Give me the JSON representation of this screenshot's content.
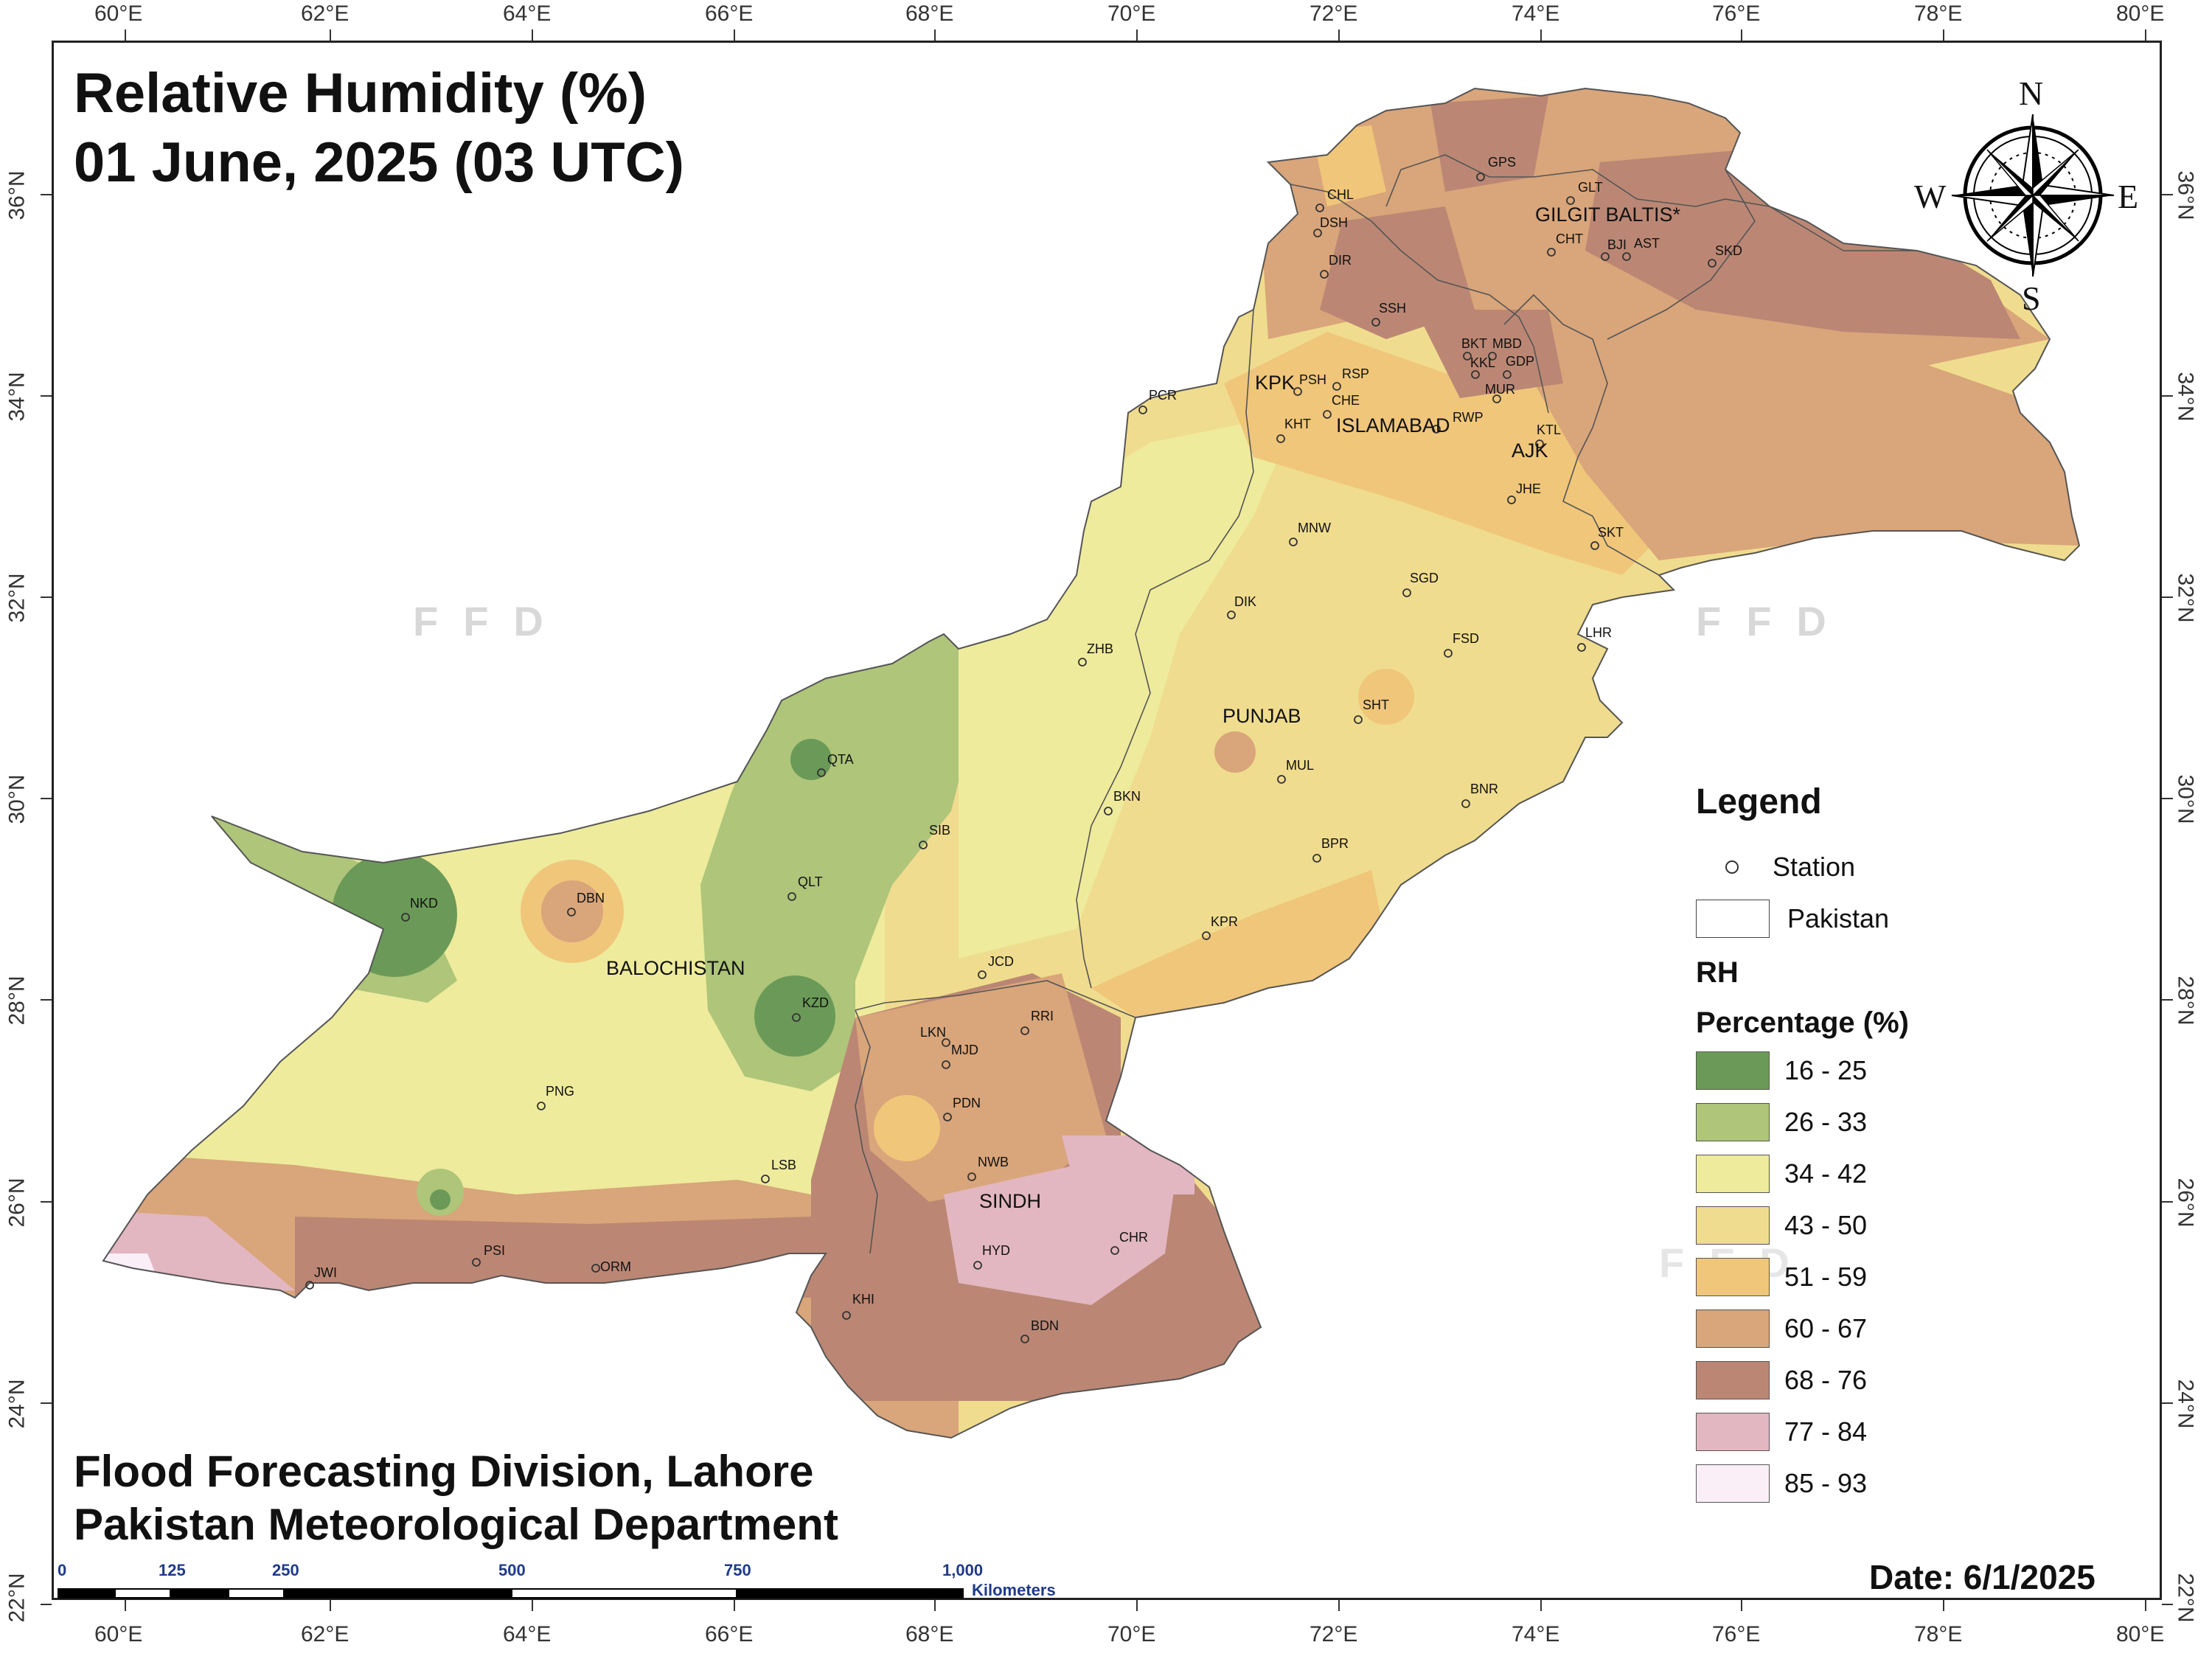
{
  "title": {
    "line1": "Relative Humidity (%)",
    "line2": "01 June, 2025 (03 UTC)"
  },
  "credits": {
    "line1": "Flood Forecasting Division, Lahore",
    "line2": "Pakistan Meteorological Department"
  },
  "date": "Date: 6/1/2025",
  "watermark": "FFD",
  "axes": {
    "longitudes": [
      "60°E",
      "62°E",
      "64°E",
      "66°E",
      "68°E",
      "70°E",
      "72°E",
      "74°E",
      "76°E",
      "78°E",
      "80°E"
    ],
    "latitudes": [
      "36°N",
      "34°N",
      "32°N",
      "30°N",
      "28°N",
      "26°N",
      "24°N",
      "22°N"
    ]
  },
  "compass": {
    "n": "N",
    "s": "S",
    "e": "E",
    "w": "W"
  },
  "regions": [
    "GILGIT BALTIS*",
    "KPK",
    "ISLAMABAD",
    "AJK",
    "PUNJAB",
    "BALOCHISTAN",
    "SINDH"
  ],
  "stations": [
    "GPS",
    "GLT",
    "CHL",
    "DSH",
    "CHT",
    "BJI",
    "AST",
    "SKD",
    "DIR",
    "SSH",
    "BKT",
    "MBD",
    "KKL",
    "GDP",
    "PSH",
    "RSP",
    "MUR",
    "CHE",
    "KHT",
    "RWP",
    "KTL",
    "PCR",
    "JHE",
    "MNW",
    "SKT",
    "SGD",
    "DIK",
    "LHR",
    "FSD",
    "ZHB",
    "SHT",
    "QTA",
    "MUL",
    "BKN",
    "BNR",
    "SIB",
    "BPR",
    "QLT",
    "NKD",
    "DBN",
    "KPR",
    "JCD",
    "KZD",
    "RRI",
    "LKN",
    "MJD",
    "PNG",
    "PDN",
    "LSB",
    "NWB",
    "PSI",
    "HYD",
    "CHR",
    "JWI",
    "ORM",
    "KHI",
    "BDN"
  ],
  "legend": {
    "title": "Legend",
    "station_label": "Station",
    "boundary_label": "Pakistan",
    "rh_label": "RH",
    "unit_label": "Percentage (%)",
    "classes": [
      {
        "range": "16 - 25",
        "color": "#6b9a58"
      },
      {
        "range": "26 - 33",
        "color": "#aec57a"
      },
      {
        "range": "34 - 42",
        "color": "#eeeb9c"
      },
      {
        "range": "43 - 50",
        "color": "#f0dc8e"
      },
      {
        "range": "51 - 59",
        "color": "#f0c67a"
      },
      {
        "range": "60 - 67",
        "color": "#d9a57a"
      },
      {
        "range": "68 - 76",
        "color": "#bb8774"
      },
      {
        "range": "77 - 84",
        "color": "#e2b7c1"
      },
      {
        "range": "85 - 93",
        "color": "#faeef7"
      }
    ]
  },
  "scale": {
    "labels": [
      "0",
      "125",
      "250",
      "500",
      "750",
      "1,000"
    ],
    "unit": "Kilometers"
  }
}
